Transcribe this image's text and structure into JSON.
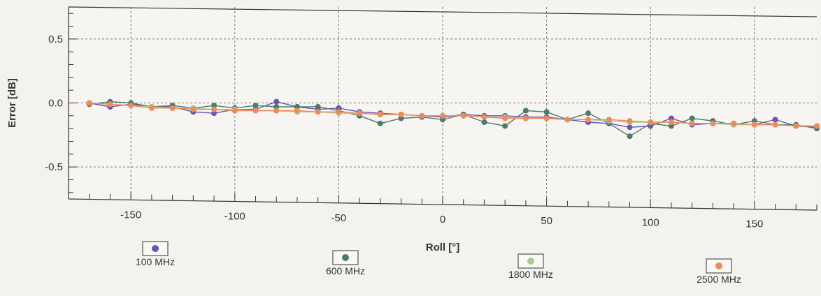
{
  "chart_data": {
    "type": "line",
    "title": "",
    "xlabel": "Roll [°]",
    "ylabel": "Error [dB]",
    "xlim": [
      -180,
      180
    ],
    "ylim": [
      -0.75,
      0.75
    ],
    "x_ticks": [
      -150,
      -100,
      -50,
      0,
      50,
      100,
      150
    ],
    "x_tick_labels": [
      "-150",
      "-100",
      "-50",
      "0",
      "50",
      "100",
      "150"
    ],
    "y_ticks": [
      0.5,
      0.0,
      -0.5
    ],
    "y_tick_labels": [
      "0.5",
      "0.0",
      "-0.5"
    ],
    "grid": true,
    "legend_position": "bottom",
    "x": [
      -170,
      -160,
      -150,
      -140,
      -130,
      -120,
      -110,
      -100,
      -90,
      -80,
      -70,
      -60,
      -50,
      -40,
      -30,
      -20,
      -10,
      0,
      10,
      20,
      30,
      40,
      50,
      60,
      70,
      80,
      90,
      100,
      110,
      120,
      130,
      140,
      150,
      160,
      170,
      180
    ],
    "series": [
      {
        "name": "100 MHz",
        "color": "#6b55b8",
        "values": [
          0.0,
          -0.03,
          -0.01,
          -0.03,
          -0.03,
          -0.07,
          -0.08,
          -0.05,
          -0.05,
          0.01,
          -0.03,
          -0.05,
          -0.04,
          -0.07,
          -0.08,
          -0.09,
          -0.1,
          -0.11,
          -0.09,
          -0.1,
          -0.1,
          -0.11,
          -0.11,
          -0.13,
          -0.15,
          -0.16,
          -0.19,
          -0.18,
          -0.12,
          -0.17,
          -0.16,
          -0.16,
          -0.17,
          -0.13,
          -0.18,
          -0.19
        ]
      },
      {
        "name": "600 MHz",
        "color": "#4f7a6a",
        "values": [
          -0.01,
          0.01,
          0.0,
          -0.03,
          -0.02,
          -0.04,
          -0.02,
          -0.04,
          -0.02,
          -0.03,
          -0.03,
          -0.03,
          -0.06,
          -0.1,
          -0.16,
          -0.12,
          -0.11,
          -0.13,
          -0.09,
          -0.15,
          -0.18,
          -0.06,
          -0.07,
          -0.13,
          -0.08,
          -0.16,
          -0.26,
          -0.16,
          -0.18,
          -0.12,
          -0.14,
          -0.17,
          -0.14,
          -0.17,
          -0.17,
          -0.2
        ]
      },
      {
        "name": "1800 MHz",
        "color": "#a9c98e",
        "values": [
          0.0,
          -0.01,
          -0.02,
          -0.03,
          -0.04,
          -0.04,
          -0.05,
          -0.05,
          -0.06,
          -0.06,
          -0.07,
          -0.07,
          -0.08,
          -0.08,
          -0.09,
          -0.09,
          -0.1,
          -0.1,
          -0.1,
          -0.11,
          -0.11,
          -0.12,
          -0.12,
          -0.13,
          -0.13,
          -0.14,
          -0.15,
          -0.15,
          -0.15,
          -0.16,
          -0.16,
          -0.17,
          -0.17,
          -0.17,
          -0.18,
          -0.18
        ]
      },
      {
        "name": "2500 MHz",
        "color": "#f08a5a",
        "values": [
          0.0,
          -0.01,
          -0.02,
          -0.04,
          -0.04,
          -0.05,
          -0.05,
          -0.06,
          -0.06,
          -0.06,
          -0.06,
          -0.07,
          -0.07,
          -0.08,
          -0.09,
          -0.09,
          -0.1,
          -0.1,
          -0.1,
          -0.11,
          -0.12,
          -0.12,
          -0.12,
          -0.13,
          -0.13,
          -0.13,
          -0.14,
          -0.15,
          -0.15,
          -0.16,
          -0.16,
          -0.16,
          -0.17,
          -0.17,
          -0.18,
          -0.18
        ]
      }
    ]
  }
}
